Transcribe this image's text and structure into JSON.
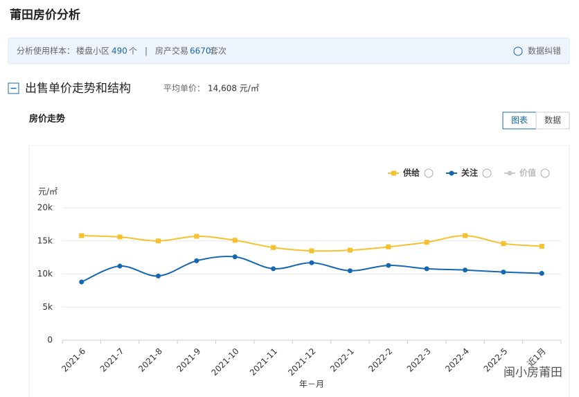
{
  "header": {
    "title": "莆田房价分析"
  },
  "info": {
    "label": "分析使用样本：",
    "community_label": "楼盘小区",
    "community_count": "490",
    "community_unit": "个",
    "separator": "|",
    "trade_label": "房产交易",
    "trade_count": "6670",
    "trade_unit": "套次",
    "correction": "数据纠错"
  },
  "section": {
    "title": "出售单价走势和结构",
    "avg_label": "平均单价：",
    "avg_value": "14,608 元/㎡"
  },
  "panel": {
    "title": "房价走势",
    "buttons": [
      "图表",
      "数据"
    ]
  },
  "watermark": "闽小房莆田",
  "chart_data": {
    "type": "line",
    "y_label": "元/㎡",
    "x_label": "年－月",
    "categories": [
      "2021-6",
      "2021-7",
      "2021-8",
      "2021-9",
      "2021-10",
      "2021-11",
      "2021-12",
      "2022-1",
      "2022-2",
      "2022-3",
      "2022-4",
      "2022-5",
      "近1月"
    ],
    "series": [
      {
        "name": "供给",
        "color": "#f5c12e",
        "marker": "square",
        "values": [
          15800,
          15600,
          15000,
          15700,
          15100,
          14000,
          13500,
          13600,
          14100,
          14800,
          15800,
          14600,
          14200
        ]
      },
      {
        "name": "关注",
        "color": "#1467b0",
        "marker": "circle",
        "values": [
          8800,
          11200,
          9700,
          12000,
          12600,
          10800,
          11700,
          10500,
          11300,
          10800,
          10600,
          10300,
          10100
        ]
      },
      {
        "name": "价值",
        "color": "#cccccc",
        "marker": "circle",
        "values": [
          null,
          null,
          null,
          null,
          null,
          null,
          null,
          null,
          null,
          null,
          null,
          null,
          null
        ]
      }
    ],
    "ylim": [
      0,
      20000
    ],
    "yticks": [
      0,
      {
        "value": 5000,
        "label": "5k"
      },
      {
        "value": 10000,
        "label": "10k"
      },
      {
        "value": 15000,
        "label": "15k"
      },
      {
        "value": 20000,
        "label": "20k"
      }
    ],
    "grid": true,
    "legend": "top-right"
  }
}
